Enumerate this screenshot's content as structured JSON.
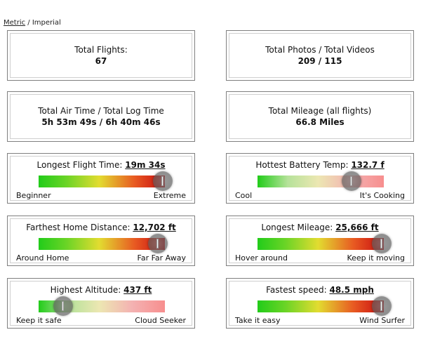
{
  "units": {
    "metric": "Metric",
    "separator": "/",
    "imperial": "Imperial"
  },
  "stats": {
    "total_flights": {
      "label": "Total Flights:",
      "value": "67"
    },
    "photos_videos": {
      "label": "Total Photos / Total Videos",
      "value": "209 / 115"
    },
    "air_log_time": {
      "label": "Total Air Time / Total Log Time",
      "value": "5h 53m 49s / 6h 40m 46s"
    },
    "mileage": {
      "label": "Total Mileage (all flights)",
      "value": "66.8 Miles"
    }
  },
  "gauges": {
    "longest_flight": {
      "label": "Longest Flight Time:",
      "value": "19m 34s",
      "low": "Beginner",
      "high": "Extreme",
      "level": 0.99,
      "faded": false
    },
    "battery_temp": {
      "label": "Hottest Battery Temp:",
      "value": "132.7 f",
      "low": "Cool",
      "high": "It's Cooking",
      "level": 0.75,
      "faded": true
    },
    "home_distance": {
      "label": "Farthest Home Distance:",
      "value": "12,702 ft",
      "low": "Around Home",
      "high": "Far Far Away",
      "level": 0.95,
      "faded": false
    },
    "longest_mileage": {
      "label": "Longest Mileage:",
      "value": "25,666 ft",
      "low": "Hover around",
      "high": "Keep it moving",
      "level": 0.99,
      "faded": false
    },
    "altitude": {
      "label": "Highest Altitude:",
      "value": "437 ft",
      "low": "Keep it safe",
      "high": "Cloud Seeker",
      "level": 0.2,
      "faded": true
    },
    "speed": {
      "label": "Fastest speed:",
      "value": "48.5 mph",
      "low": "Take it easy",
      "high": "Wind Surfer",
      "level": 0.99,
      "faded": false
    }
  }
}
